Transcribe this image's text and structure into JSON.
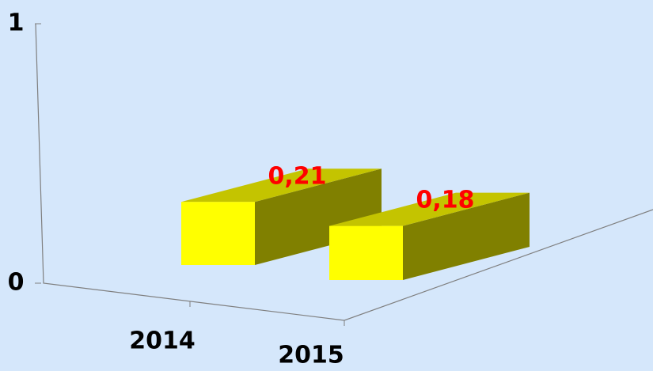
{
  "chart_data": {
    "type": "bar3d",
    "categories": [
      "2014",
      "2015"
    ],
    "values": [
      0.21,
      0.18
    ],
    "value_labels": [
      "0,21",
      "0,18"
    ],
    "color": "#ffff00",
    "ylim": [
      0,
      1
    ],
    "yticks": [
      0,
      1
    ]
  }
}
